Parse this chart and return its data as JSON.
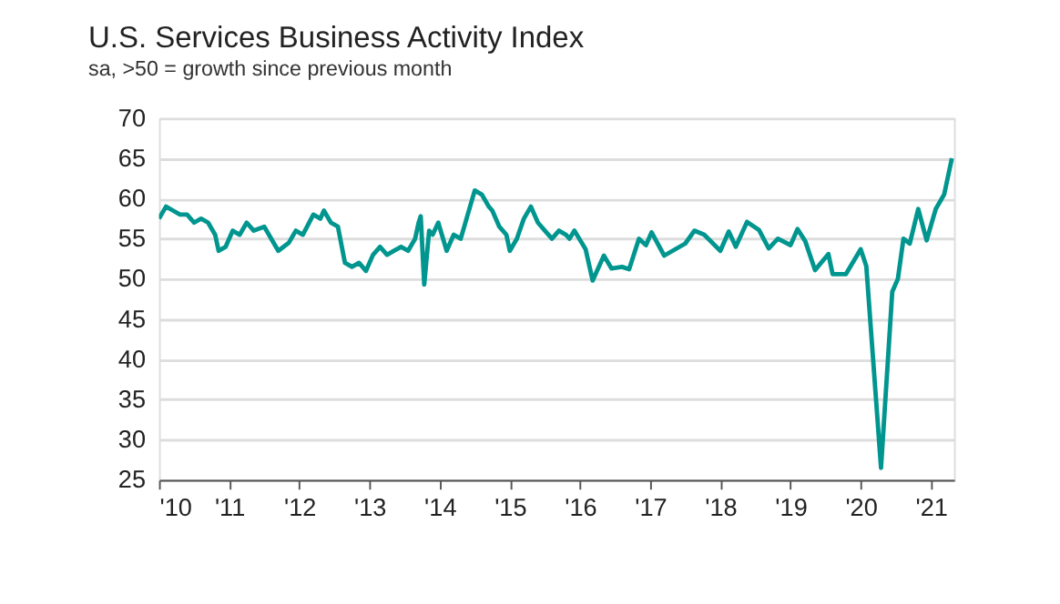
{
  "chart_data": {
    "type": "line",
    "title": "U.S. Services Business Activity Index",
    "subtitle": "sa, >50 = growth since previous month",
    "x": [
      2010.0,
      2010.1,
      2010.2,
      2010.3,
      2010.4,
      2010.5,
      2010.6,
      2010.7,
      2010.8,
      2010.85,
      2010.95,
      2011.05,
      2011.15,
      2011.25,
      2011.35,
      2011.5,
      2011.6,
      2011.7,
      2011.85,
      2011.95,
      2012.05,
      2012.2,
      2012.3,
      2012.35,
      2012.45,
      2012.55,
      2012.65,
      2012.75,
      2012.85,
      2012.95,
      2013.05,
      2013.15,
      2013.25,
      2013.35,
      2013.45,
      2013.55,
      2013.65,
      2013.7,
      2013.73,
      2013.78,
      2013.85,
      2013.9,
      2013.98,
      2014.1,
      2014.2,
      2014.3,
      2014.4,
      2014.5,
      2014.6,
      2014.7,
      2014.75,
      2014.85,
      2014.95,
      2015.0,
      2015.1,
      2015.2,
      2015.3,
      2015.4,
      2015.5,
      2015.6,
      2015.7,
      2015.8,
      2015.85,
      2015.92,
      2016.08,
      2016.18,
      2016.34,
      2016.45,
      2016.6,
      2016.7,
      2016.84,
      2016.94,
      2017.02,
      2017.2,
      2017.5,
      2017.63,
      2017.77,
      2018.0,
      2018.12,
      2018.22,
      2018.38,
      2018.55,
      2018.69,
      2018.82,
      2019.0,
      2019.1,
      2019.21,
      2019.35,
      2019.54,
      2019.6,
      2019.79,
      2020.0,
      2020.08,
      2020.29,
      2020.45,
      2020.53,
      2020.61,
      2020.7,
      2020.82,
      2020.94,
      2021.07,
      2021.19,
      2021.3
    ],
    "series": [
      {
        "color": "#00968f",
        "values": [
          57.5,
          59,
          58.5,
          58,
          58,
          57,
          57.5,
          57,
          55.5,
          53.5,
          54,
          56,
          55.5,
          57,
          56,
          56.5,
          55,
          53.5,
          54.5,
          56,
          55.5,
          58,
          57.5,
          58.5,
          57,
          56.5,
          52,
          51.5,
          52,
          51,
          53,
          54,
          53,
          53.5,
          54,
          53.5,
          55,
          57,
          57.8,
          49.3,
          56,
          55.5,
          57,
          53.5,
          55.5,
          55,
          58,
          61,
          60.5,
          59,
          58.5,
          56.5,
          55.5,
          53.5,
          55,
          57.5,
          59,
          57,
          56,
          55,
          56,
          55.5,
          55,
          56,
          53.7,
          49.8,
          52.9,
          51.3,
          51.5,
          51.2,
          55,
          54.2,
          55.8,
          52.9,
          54.4,
          56,
          55.5,
          53.5,
          55.9,
          54,
          57.1,
          56.1,
          53.8,
          55,
          54.2,
          56.2,
          54.7,
          51.1,
          53.1,
          50.6,
          50.6,
          53.7,
          51.6,
          26.5,
          48.4,
          50,
          55,
          54.4,
          58.7,
          54.8,
          58.7,
          60.5,
          65
        ]
      }
    ],
    "xlim": [
      2010.0,
      2021.33
    ],
    "xticks": [
      {
        "value": 2010,
        "label": "'10"
      },
      {
        "value": 2011,
        "label": "'11"
      },
      {
        "value": 2012,
        "label": "'12"
      },
      {
        "value": 2013,
        "label": "'13"
      },
      {
        "value": 2014,
        "label": "'14"
      },
      {
        "value": 2015,
        "label": "'15"
      },
      {
        "value": 2016,
        "label": "'16"
      },
      {
        "value": 2017,
        "label": "'17"
      },
      {
        "value": 2018,
        "label": "'18"
      },
      {
        "value": 2019,
        "label": "'19"
      },
      {
        "value": 2020,
        "label": "'20"
      },
      {
        "value": 2021,
        "label": "'21"
      }
    ],
    "ylim": [
      25,
      70
    ],
    "yticks": [
      25,
      30,
      35,
      40,
      45,
      50,
      55,
      60,
      65,
      70
    ],
    "grid": "y",
    "line_style": "solid",
    "marker": "none"
  }
}
